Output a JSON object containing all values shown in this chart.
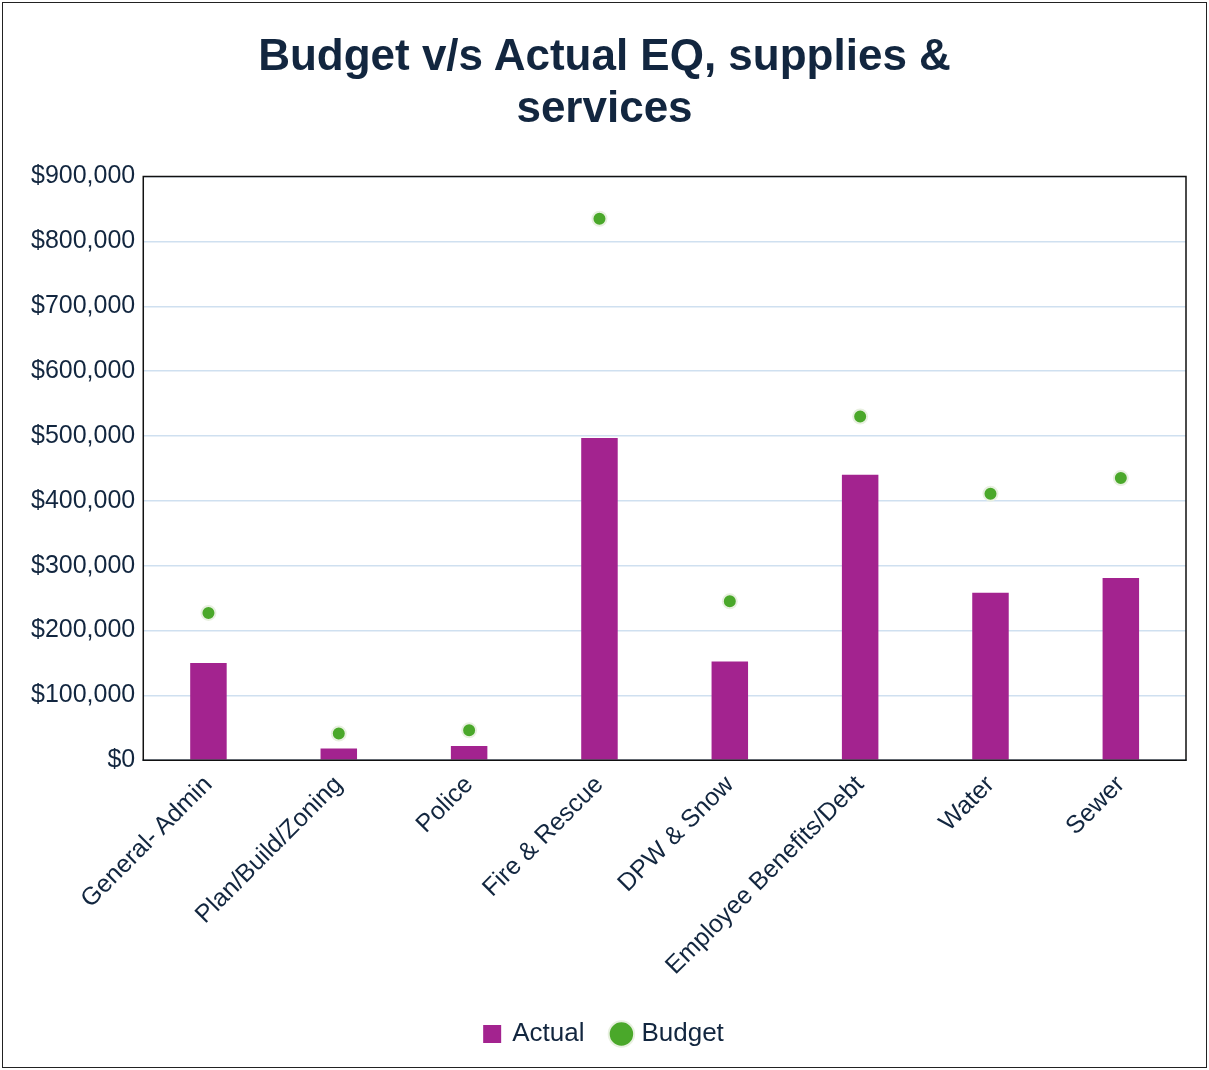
{
  "chart_data": {
    "type": "bar",
    "title": "Budget v/s Actual EQ, supplies & services",
    "categories": [
      "General- Admin",
      "Plan/Build/Zoning",
      "Police",
      "Fire & Rescue",
      "DPW & Snow",
      "Employee Benefits/Debt",
      "Water",
      "Sewer"
    ],
    "series": [
      {
        "name": "Actual",
        "color": "#a3238f",
        "values": [
          150000,
          18000,
          22000,
          497000,
          152000,
          440000,
          258000,
          281000
        ]
      },
      {
        "name": "Budget",
        "type": "scatter",
        "color": "#4aa82a",
        "marker": "circle",
        "x": [
          "General- Admin",
          "Plan/Build/Zoning",
          "Police",
          "Fire & Rescue",
          "DPW & Snow",
          "Employee Benefits/Debt",
          "Water",
          "Sewer"
        ],
        "values": [
          227000,
          41000,
          46000,
          835000,
          245000,
          530000,
          411000,
          435000
        ]
      }
    ],
    "ylim": [
      0,
      900000
    ],
    "yticks": [
      {
        "value": 0,
        "label": "$0"
      },
      {
        "value": 100000,
        "label": "$100,000"
      },
      {
        "value": 200000,
        "label": "$200,000"
      },
      {
        "value": 300000,
        "label": "$300,000"
      },
      {
        "value": 400000,
        "label": "$400,000"
      },
      {
        "value": 500000,
        "label": "$500,000"
      },
      {
        "value": 600000,
        "label": "$600,000"
      },
      {
        "value": 700000,
        "label": "$700,000"
      },
      {
        "value": 800000,
        "label": "$800,000"
      },
      {
        "value": 900000,
        "label": "$900,000"
      }
    ],
    "grid": "y",
    "legend": "bottom"
  }
}
